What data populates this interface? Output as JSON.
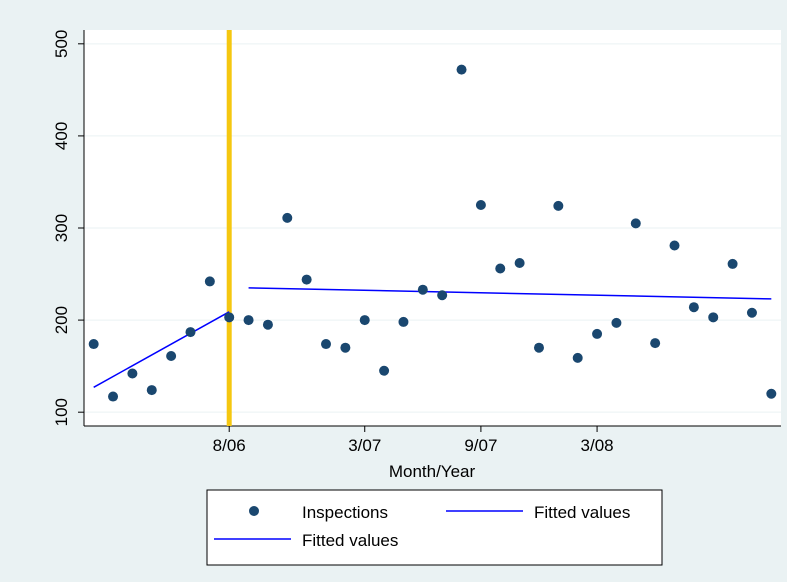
{
  "chart_data": {
    "type": "scatter",
    "xlabel": "Month/Year",
    "ylabel": "",
    "title": "",
    "x_range": [
      0,
      36
    ],
    "ylim": [
      85,
      515
    ],
    "grid": "horizontal",
    "x_ticks": [
      {
        "x": 7.5,
        "label": "8/06"
      },
      {
        "x": 14.5,
        "label": "3/07"
      },
      {
        "x": 20.5,
        "label": "9/07"
      },
      {
        "x": 26.5,
        "label": "3/08"
      }
    ],
    "y_ticks": [
      100,
      200,
      300,
      400,
      500
    ],
    "vertical_line": {
      "x": 7.5,
      "color": "#f5c710"
    },
    "series": [
      {
        "name": "Inspections",
        "kind": "scatter",
        "color": "#1a476f",
        "points": [
          [
            0.5,
            174
          ],
          [
            1.5,
            117
          ],
          [
            2.5,
            142
          ],
          [
            3.5,
            124
          ],
          [
            4.5,
            161
          ],
          [
            5.5,
            187
          ],
          [
            6.5,
            242
          ],
          [
            7.5,
            203
          ],
          [
            8.5,
            200
          ],
          [
            9.5,
            195
          ],
          [
            10.5,
            311
          ],
          [
            11.5,
            244
          ],
          [
            12.5,
            174
          ],
          [
            13.5,
            170
          ],
          [
            14.5,
            200
          ],
          [
            15.5,
            145
          ],
          [
            16.5,
            198
          ],
          [
            17.5,
            233
          ],
          [
            18.5,
            227
          ],
          [
            19.5,
            472
          ],
          [
            20.5,
            325
          ],
          [
            21.5,
            256
          ],
          [
            22.5,
            262
          ],
          [
            23.5,
            170
          ],
          [
            24.5,
            324
          ],
          [
            25.5,
            159
          ],
          [
            26.5,
            185
          ],
          [
            27.5,
            197
          ],
          [
            28.5,
            305
          ],
          [
            29.5,
            175
          ],
          [
            30.5,
            281
          ],
          [
            31.5,
            214
          ],
          [
            32.5,
            203
          ],
          [
            33.5,
            261
          ],
          [
            34.5,
            208
          ],
          [
            35.5,
            120
          ]
        ]
      },
      {
        "name": "Fitted values",
        "kind": "line",
        "color": "#0000ff",
        "points": [
          [
            0.5,
            127
          ],
          [
            7.5,
            209
          ]
        ]
      },
      {
        "name": "Fitted values",
        "kind": "line",
        "color": "#0000ff",
        "points": [
          [
            8.5,
            235
          ],
          [
            35.5,
            223
          ]
        ]
      }
    ],
    "legend": {
      "position": "bottom",
      "entries": [
        {
          "label": "Inspections",
          "symbol": "dot",
          "color": "#1a476f"
        },
        {
          "label": "Fitted values",
          "symbol": "line",
          "color": "#0000ff"
        },
        {
          "label": "Fitted values",
          "symbol": "line",
          "color": "#0000ff"
        }
      ]
    }
  }
}
